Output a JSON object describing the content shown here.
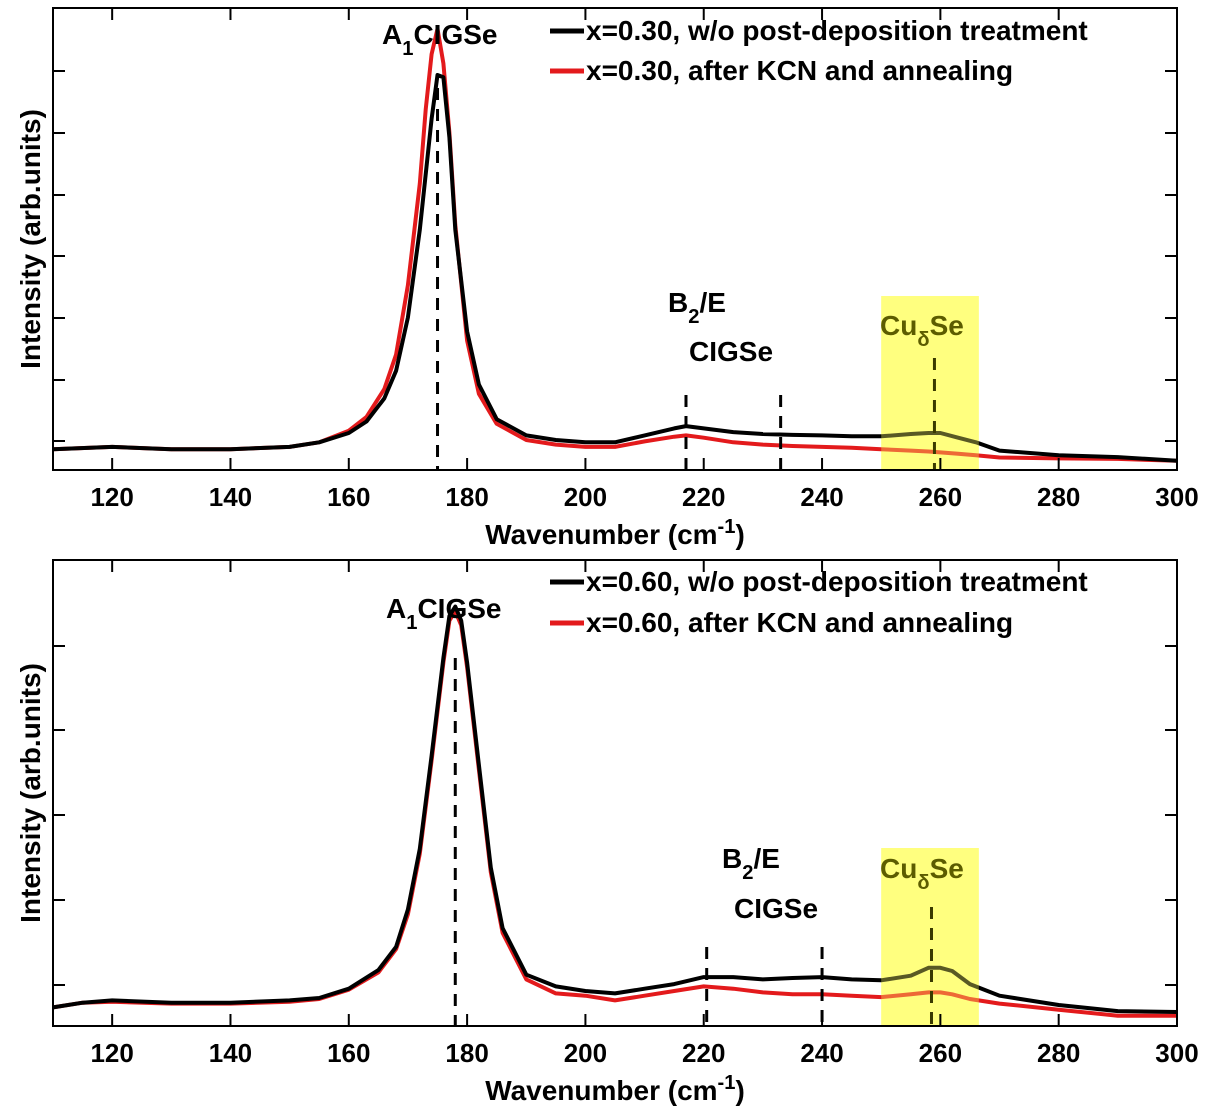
{
  "chart_data": [
    {
      "type": "line",
      "xlabel": "Wavenumber (cm",
      "xlabel_sup": "-1",
      "xlabel_close": ")",
      "ylabel": "Intensity (arb.units)",
      "xlim": [
        110,
        300
      ],
      "ylim": [
        0,
        1.0
      ],
      "xticks": [
        120,
        140,
        160,
        180,
        200,
        220,
        240,
        260,
        280,
        300
      ],
      "yticks_count": 7,
      "grid": false,
      "legend_position": "top-right",
      "highlight": {
        "x_range": [
          250,
          266.5
        ],
        "color": "#ffff66"
      },
      "annotations": {
        "a1_main": "A",
        "a1_sub": "1",
        "a1_rest": "CIGSe",
        "b2_main": "B",
        "b2_sub": "2",
        "b2_rest": "/E",
        "b2_line2": "CIGSe",
        "cu_main": "Cu",
        "cu_sub": "δ",
        "cu_rest": "Se"
      },
      "peak_markers": [
        175,
        217,
        233,
        259
      ],
      "series": [
        {
          "name": "x=0.30, w/o post-deposition treatment",
          "color": "#000000",
          "x": [
            110,
            120,
            130,
            140,
            150,
            155,
            160,
            163,
            166,
            168,
            170,
            172,
            174,
            175,
            176,
            177,
            178,
            180,
            182,
            185,
            190,
            195,
            200,
            205,
            210,
            215,
            217,
            220,
            225,
            230,
            235,
            240,
            245,
            250,
            255,
            258,
            260,
            263,
            266,
            270,
            280,
            290,
            300
          ],
          "y": [
            0.045,
            0.05,
            0.045,
            0.045,
            0.05,
            0.06,
            0.08,
            0.105,
            0.155,
            0.215,
            0.33,
            0.52,
            0.76,
            0.855,
            0.85,
            0.72,
            0.52,
            0.3,
            0.185,
            0.11,
            0.075,
            0.065,
            0.06,
            0.06,
            0.075,
            0.09,
            0.095,
            0.09,
            0.082,
            0.078,
            0.076,
            0.075,
            0.073,
            0.073,
            0.078,
            0.08,
            0.08,
            0.07,
            0.06,
            0.042,
            0.032,
            0.028,
            0.02
          ]
        },
        {
          "name": "x=0.30, after KCN and annealing",
          "color": "#e31a1c",
          "x": [
            110,
            120,
            130,
            140,
            150,
            155,
            160,
            163,
            166,
            168,
            170,
            172,
            173,
            174,
            175,
            176,
            177,
            178,
            180,
            182,
            185,
            190,
            195,
            200,
            205,
            210,
            215,
            217,
            220,
            225,
            230,
            235,
            240,
            245,
            250,
            255,
            258,
            260,
            263,
            266,
            270,
            280,
            290,
            300
          ],
          "y": [
            0.045,
            0.05,
            0.045,
            0.045,
            0.05,
            0.06,
            0.085,
            0.115,
            0.175,
            0.25,
            0.4,
            0.62,
            0.78,
            0.9,
            0.955,
            0.88,
            0.73,
            0.53,
            0.28,
            0.165,
            0.1,
            0.065,
            0.055,
            0.05,
            0.05,
            0.062,
            0.072,
            0.075,
            0.07,
            0.06,
            0.055,
            0.052,
            0.05,
            0.048,
            0.045,
            0.042,
            0.04,
            0.038,
            0.035,
            0.032,
            0.027,
            0.025,
            0.024,
            0.02
          ]
        }
      ]
    },
    {
      "type": "line",
      "xlabel": "Wavenumber (cm",
      "xlabel_sup": "-1",
      "xlabel_close": ")",
      "ylabel": "Intensity (arb.units)",
      "xlim": [
        110,
        300
      ],
      "ylim": [
        0,
        1.0
      ],
      "xticks": [
        120,
        140,
        160,
        180,
        200,
        220,
        240,
        260,
        280,
        300
      ],
      "yticks_count": 5,
      "grid": false,
      "legend_position": "top-right",
      "highlight": {
        "x_range": [
          250,
          266.5
        ],
        "color": "#ffff66"
      },
      "annotations": {
        "a1_main": "A",
        "a1_sub": "1",
        "a1_rest": "CIGSe",
        "b2_main": "B",
        "b2_sub": "2",
        "b2_rest": "/E",
        "b2_line2": "CIGSe",
        "cu_main": "Cu",
        "cu_sub": "δ",
        "cu_rest": "Se"
      },
      "peak_markers": [
        178,
        220.5,
        240,
        258.5
      ],
      "series": [
        {
          "name": "x=0.60, w/o post-deposition treatment",
          "color": "#000000",
          "x": [
            110,
            115,
            120,
            130,
            140,
            150,
            155,
            160,
            165,
            168,
            170,
            172,
            174,
            176,
            177,
            178,
            179,
            180,
            182,
            184,
            186,
            190,
            195,
            200,
            205,
            210,
            215,
            220,
            225,
            230,
            235,
            240,
            245,
            250,
            255,
            258,
            260,
            262,
            265,
            270,
            280,
            290,
            300
          ],
          "y": [
            0.04,
            0.05,
            0.055,
            0.05,
            0.05,
            0.055,
            0.06,
            0.08,
            0.12,
            0.17,
            0.25,
            0.38,
            0.58,
            0.79,
            0.88,
            0.9,
            0.87,
            0.78,
            0.56,
            0.34,
            0.21,
            0.11,
            0.085,
            0.075,
            0.07,
            0.08,
            0.09,
            0.105,
            0.105,
            0.1,
            0.103,
            0.105,
            0.1,
            0.098,
            0.108,
            0.125,
            0.125,
            0.118,
            0.09,
            0.065,
            0.045,
            0.032,
            0.03
          ]
        },
        {
          "name": "x=0.60, after KCN and annealing",
          "color": "#e31a1c",
          "x": [
            110,
            115,
            120,
            130,
            140,
            150,
            155,
            160,
            165,
            168,
            170,
            172,
            174,
            176,
            177,
            178,
            179,
            180,
            182,
            184,
            186,
            190,
            195,
            200,
            205,
            210,
            215,
            220,
            225,
            230,
            235,
            240,
            245,
            250,
            255,
            258,
            260,
            262,
            265,
            270,
            280,
            290,
            300
          ],
          "y": [
            0.04,
            0.05,
            0.052,
            0.048,
            0.048,
            0.052,
            0.058,
            0.078,
            0.115,
            0.165,
            0.24,
            0.37,
            0.57,
            0.78,
            0.87,
            0.89,
            0.86,
            0.77,
            0.55,
            0.33,
            0.2,
            0.1,
            0.07,
            0.065,
            0.055,
            0.065,
            0.075,
            0.085,
            0.08,
            0.072,
            0.068,
            0.068,
            0.065,
            0.062,
            0.068,
            0.072,
            0.072,
            0.068,
            0.058,
            0.048,
            0.035,
            0.022,
            0.022
          ]
        }
      ]
    }
  ]
}
